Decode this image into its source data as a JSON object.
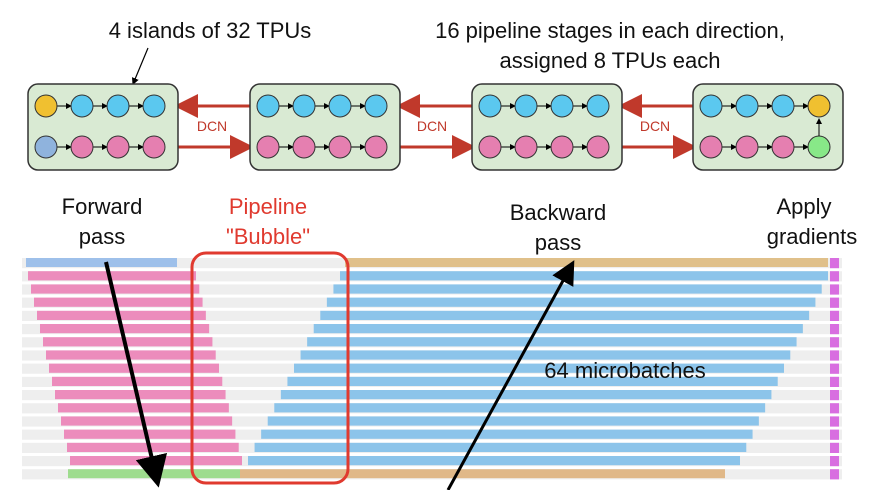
{
  "header": {
    "left_title": "4 islands of 32 TPUs",
    "right_title_lines": [
      "16 pipeline stages in each direction,",
      "assigned 8 TPUs each"
    ]
  },
  "links": [
    "DCN",
    "DCN",
    "DCN"
  ],
  "labels": {
    "forward": [
      "Forward",
      "pass"
    ],
    "bubble": [
      "Pipeline",
      "\"Bubble\""
    ],
    "backward": [
      "Backward",
      "pass"
    ],
    "apply": [
      "Apply",
      "gradients"
    ],
    "microbatches": "64 microbatches"
  }
}
